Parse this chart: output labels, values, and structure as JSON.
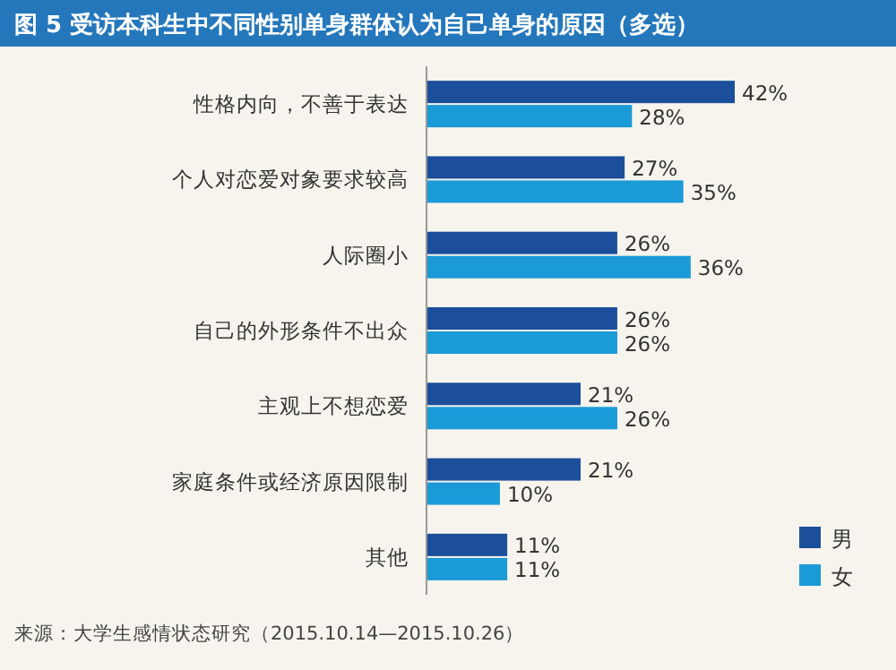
{
  "chart_data": {
    "type": "bar",
    "orientation": "horizontal",
    "title": "图 5  受访本科生中不同性别单身群体认为自己单身的原因（多选）",
    "categories": [
      "性格内向，不善于表达",
      "个人对恋爱对象要求较高",
      "人际圈小",
      "自己的外形条件不出众",
      "主观上不想恋爱",
      "家庭条件或经济原因限制",
      "其他"
    ],
    "series": [
      {
        "name": "男",
        "color": "#1b4f9b",
        "values": [
          42,
          27,
          26,
          26,
          21,
          21,
          11
        ],
        "value_labels": [
          "42%",
          "27%",
          "26%",
          "26%",
          "21%",
          "21%",
          "11%"
        ]
      },
      {
        "name": "女",
        "color": "#1a9ad7",
        "values": [
          28,
          35,
          36,
          26,
          26,
          10,
          11
        ],
        "value_labels": [
          "28%",
          "35%",
          "36%",
          "26%",
          "26%",
          "10%",
          "11%"
        ]
      }
    ],
    "legend": "bottom right",
    "annotations": [
      "来源：大学生感情状态研究（2015.10.14—2015.10.26）"
    ]
  }
}
